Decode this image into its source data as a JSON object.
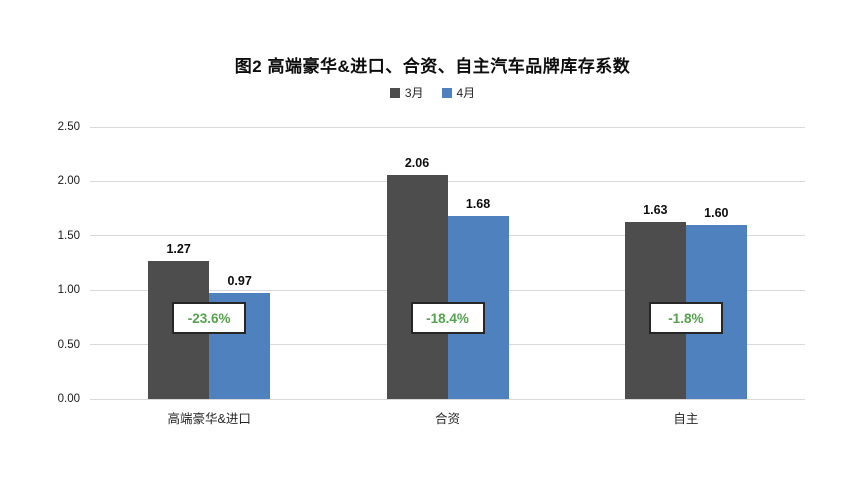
{
  "chart_data": {
    "type": "bar",
    "title": "图2  高端豪华&进口、合资、自主汽车品牌库存系数",
    "categories": [
      "高端豪华&进口",
      "合资",
      "自主"
    ],
    "series": [
      {
        "name": "3月",
        "color": "#4d4d4d",
        "values": [
          1.27,
          2.06,
          1.63
        ]
      },
      {
        "name": "4月",
        "color": "#4e81bd",
        "values": [
          0.97,
          1.68,
          1.6
        ]
      }
    ],
    "change_labels": [
      "-23.6%",
      "-18.4%",
      "-1.8%"
    ],
    "change_label_color": "#55a24f",
    "y_tick_labels": [
      "0.00",
      "0.50",
      "1.00",
      "1.50",
      "2.00",
      "2.50"
    ],
    "ylim": [
      0,
      2.5
    ],
    "xlabel": "",
    "ylabel": "",
    "grid": true,
    "legend_position": "top",
    "gridline_color": "#d9d9d9"
  }
}
